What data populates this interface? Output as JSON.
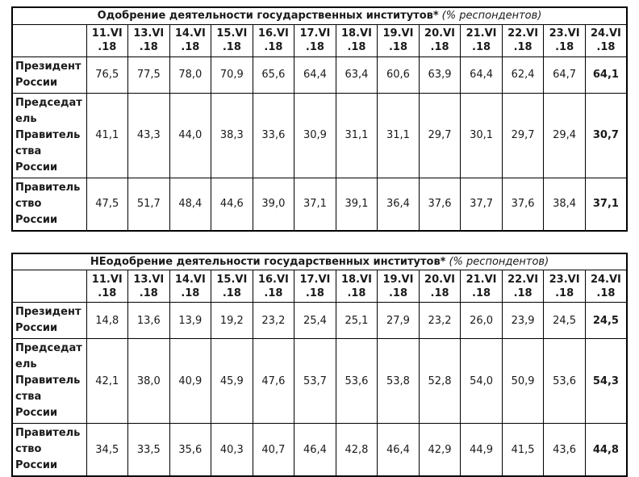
{
  "colors": {
    "border": "#000000",
    "text": "#1a1a1a",
    "background": "#ffffff"
  },
  "chart_data": [
    {
      "type": "table",
      "title": "Одобрение деятельности государственных институтов*",
      "subtitle": "(% респондентов)",
      "columns": [
        "11.VI.18",
        "13.VI.18",
        "14.VI.18",
        "15.VI.18",
        "16.VI.18",
        "17.VI.18",
        "18.VI.18",
        "19.VI.18",
        "20.VI.18",
        "21.VI.18",
        "22.VI.18",
        "23.VI.18",
        "24.VI.18"
      ],
      "rows": [
        {
          "label": "Президент России",
          "values": [
            76.5,
            77.5,
            78.0,
            70.9,
            65.6,
            64.4,
            63.4,
            60.6,
            63.9,
            64.4,
            62.4,
            64.7,
            64.1
          ]
        },
        {
          "label": "Председатель Правительства России",
          "values": [
            41.1,
            43.3,
            44.0,
            38.3,
            33.6,
            30.9,
            31.1,
            31.1,
            29.7,
            30.1,
            29.7,
            29.4,
            30.7
          ]
        },
        {
          "label": "Правительство России",
          "values": [
            47.5,
            51.7,
            48.4,
            44.6,
            39.0,
            37.1,
            39.1,
            36.4,
            37.6,
            37.7,
            37.6,
            38.4,
            37.1
          ]
        }
      ]
    },
    {
      "type": "table",
      "title": "НЕодобрение деятельности государственных институтов*",
      "subtitle": "(% респондентов)",
      "columns": [
        "11.VI.18",
        "13.VI.18",
        "14.VI.18",
        "15.VI.18",
        "16.VI.18",
        "17.VI.18",
        "18.VI.18",
        "19.VI.18",
        "20.VI.18",
        "21.VI.18",
        "22.VI.18",
        "23.VI.18",
        "24.VI.18"
      ],
      "rows": [
        {
          "label": "Президент России",
          "values": [
            14.8,
            13.6,
            13.9,
            19.2,
            23.2,
            25.4,
            25.1,
            27.9,
            23.2,
            26.0,
            23.9,
            24.5,
            24.5
          ]
        },
        {
          "label": "Председатель Правительства России",
          "values": [
            42.1,
            38.0,
            40.9,
            45.9,
            47.6,
            53.7,
            53.6,
            53.8,
            52.8,
            54.0,
            50.9,
            53.6,
            54.3
          ]
        },
        {
          "label": "Правительство России",
          "values": [
            34.5,
            33.5,
            35.6,
            40.3,
            40.7,
            46.4,
            42.8,
            46.4,
            42.9,
            44.9,
            41.5,
            43.6,
            44.8
          ]
        }
      ]
    }
  ]
}
